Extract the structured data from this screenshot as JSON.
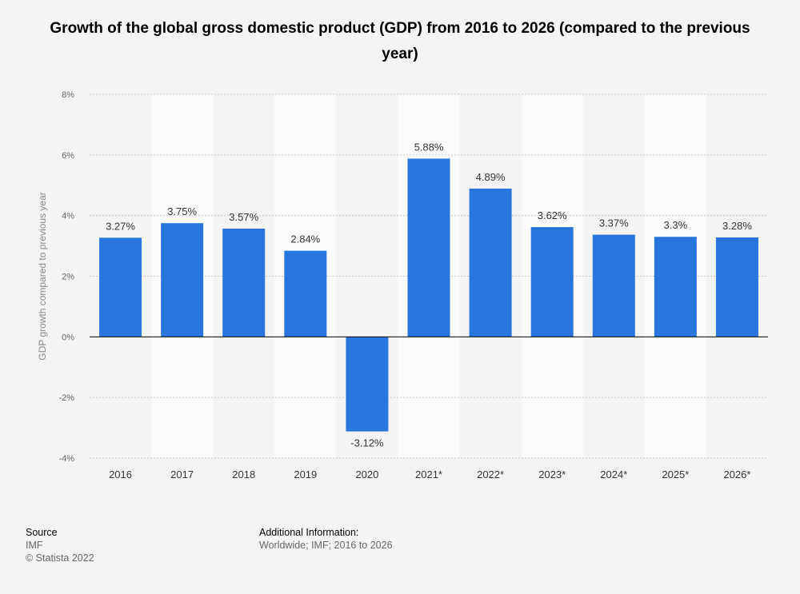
{
  "title": "Growth of the global gross domestic product (GDP) from 2016 to 2026 (compared to the previous year)",
  "chart_data": {
    "type": "bar",
    "title": "Growth of the global gross domestic product (GDP) from 2016 to 2026 (compared to the previous year)",
    "xlabel": "",
    "ylabel": "GDP growth compared to previous year",
    "ylim": [
      -4,
      8
    ],
    "yticks": [
      -4,
      -2,
      0,
      2,
      4,
      6,
      8
    ],
    "ytick_labels": [
      "-4%",
      "-2%",
      "0%",
      "2%",
      "4%",
      "6%",
      "8%"
    ],
    "categories": [
      "2016",
      "2017",
      "2018",
      "2019",
      "2020",
      "2021*",
      "2022*",
      "2023*",
      "2024*",
      "2025*",
      "2026*"
    ],
    "values": [
      3.27,
      3.75,
      3.57,
      2.84,
      -3.12,
      5.88,
      4.89,
      3.62,
      3.37,
      3.3,
      3.28
    ],
    "value_labels": [
      "3.27%",
      "3.75%",
      "3.57%",
      "2.84%",
      "-3.12%",
      "5.88%",
      "4.89%",
      "3.62%",
      "3.37%",
      "3.3%",
      "3.28%"
    ],
    "bar_color": "#2876dd",
    "grid": true
  },
  "footer": {
    "source_heading": "Source",
    "source_name": "IMF",
    "copyright": "© Statista 2022",
    "additional_heading": "Additional Information:",
    "additional_text": "Worldwide; IMF; 2016 to 2026"
  }
}
